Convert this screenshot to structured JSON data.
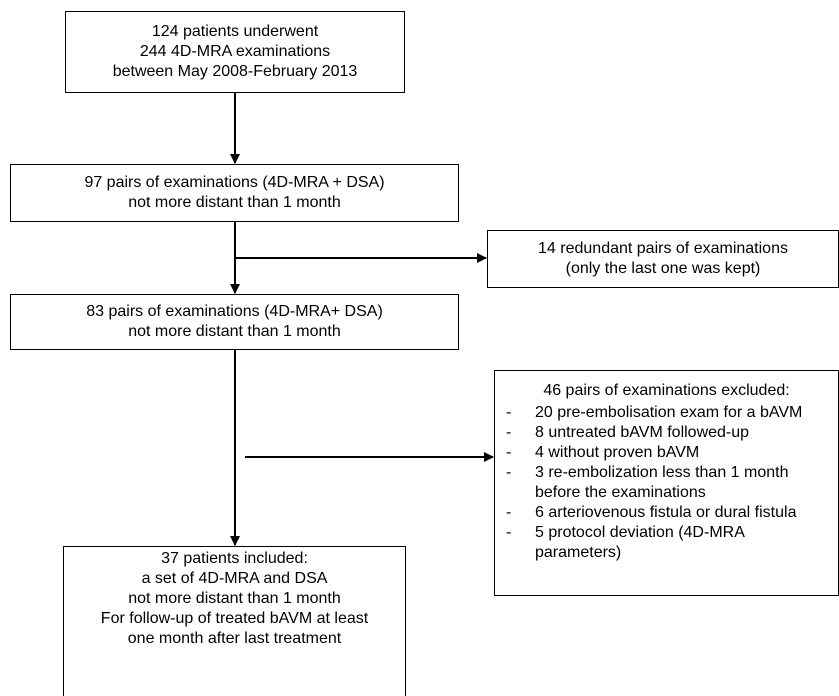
{
  "boxes": {
    "start": {
      "lines": [
        "124 patients underwent",
        "244 4D-MRA examinations",
        "between May 2008-February 2013"
      ]
    },
    "pairs97": {
      "lines": [
        "97 pairs of examinations (4D-MRA + DSA)",
        "not more distant than 1 month"
      ]
    },
    "redundant": {
      "lines": [
        "14 redundant pairs of examinations",
        "(only the last one was kept)"
      ]
    },
    "pairs83": {
      "lines": [
        "83 pairs of examinations (4D-MRA+ DSA)",
        "not more distant than 1 month"
      ]
    },
    "excluded": {
      "title": "46 pairs of examinations excluded:",
      "items": [
        [
          "20 pre-embolisation exam for a bAVM"
        ],
        [
          "8 untreated bAVM followed-up"
        ],
        [
          "4 without proven bAVM"
        ],
        [
          "3 re-embolization less than 1 month",
          "before the  examinations"
        ],
        [
          "6 arteriovenous fistula or dural fistula"
        ],
        [
          "5 protocol deviation (4D-MRA",
          "parameters)"
        ]
      ]
    },
    "included": {
      "lines": [
        "37 patients included:",
        "a set of 4D-MRA and DSA",
        "not more distant than 1 month",
        "For follow-up of treated bAVM at least",
        "one month after last treatment"
      ]
    }
  }
}
